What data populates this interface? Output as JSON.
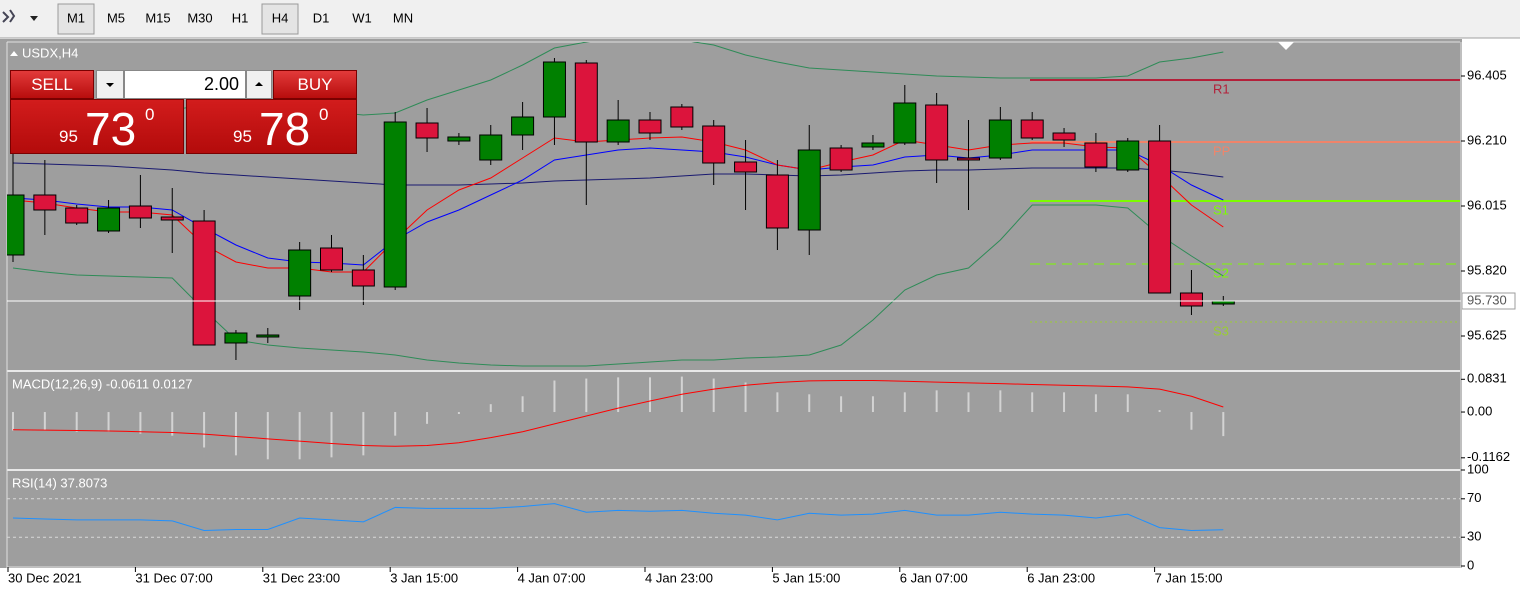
{
  "toolbar": {
    "timeframes": [
      {
        "label": "M1",
        "pressed": true
      },
      {
        "label": "M5",
        "pressed": false
      },
      {
        "label": "M15",
        "pressed": false
      },
      {
        "label": "M30",
        "pressed": false
      },
      {
        "label": "H1",
        "pressed": false
      },
      {
        "label": "H4",
        "pressed": true
      },
      {
        "label": "D1",
        "pressed": false
      },
      {
        "label": "W1",
        "pressed": false
      },
      {
        "label": "MN",
        "pressed": false
      }
    ]
  },
  "trade": {
    "sell_label": "SELL",
    "buy_label": "BUY",
    "lots": "2.00",
    "sell_price": [
      "95",
      "73",
      "0"
    ],
    "buy_price": [
      "95",
      "78",
      "0"
    ]
  },
  "chart_data": [
    {
      "type": "candlestick",
      "title": "USDX,H4",
      "categories": [
        "30 Dec 2021",
        null,
        null,
        null,
        "31 Dec 07:00",
        null,
        null,
        null,
        "31 Dec 23:00",
        null,
        null,
        null,
        "3 Jan 15:00",
        null,
        null,
        null,
        "4 Jan 07:00",
        null,
        null,
        null,
        "4 Jan 23:00",
        null,
        null,
        null,
        "5 Jan 15:00",
        null,
        null,
        null,
        "6 Jan 07:00",
        null,
        null,
        null,
        "6 Jan 23:00",
        null,
        null,
        null,
        "7 Jan 15:00",
        null,
        null
      ],
      "open": [
        95.868,
        96.048,
        96.009,
        95.94,
        96.015,
        95.982,
        95.97,
        95.604,
        95.622,
        95.745,
        95.889,
        95.823,
        95.772,
        96.264,
        96.21,
        96.153,
        96.228,
        96.282,
        96.444,
        96.207,
        96.273,
        96.312,
        96.255,
        96.147,
        96.108,
        95.943,
        96.189,
        96.192,
        96.204,
        96.318,
        96.159,
        96.159,
        96.273,
        96.234,
        96.204,
        96.123,
        96.21,
        95.754,
        95.721
      ],
      "high": [
        96.183,
        96.153,
        96.018,
        96.033,
        96.108,
        96.069,
        96.003,
        95.643,
        95.649,
        95.907,
        95.928,
        95.868,
        96.297,
        96.309,
        96.234,
        96.258,
        96.327,
        96.459,
        96.453,
        96.333,
        96.297,
        96.321,
        96.273,
        96.213,
        96.153,
        96.258,
        96.198,
        96.228,
        96.378,
        96.354,
        96.273,
        96.312,
        96.297,
        96.249,
        96.234,
        96.219,
        96.258,
        95.823,
        95.745
      ],
      "low": [
        95.847,
        95.928,
        95.958,
        95.934,
        95.949,
        95.874,
        95.598,
        95.553,
        95.604,
        95.703,
        95.817,
        95.718,
        95.763,
        96.177,
        96.198,
        96.138,
        96.183,
        96.198,
        96.018,
        96.198,
        96.213,
        96.243,
        96.078,
        96.003,
        95.883,
        95.868,
        96.117,
        96.183,
        96.198,
        96.084,
        96.003,
        96.153,
        96.213,
        96.192,
        96.117,
        96.117,
        95.754,
        95.688,
        95.715
      ],
      "close": [
        96.048,
        96.003,
        95.964,
        96.009,
        95.979,
        95.973,
        95.598,
        95.634,
        95.628,
        95.883,
        95.823,
        95.775,
        96.267,
        96.219,
        96.222,
        96.228,
        96.282,
        96.447,
        96.207,
        96.273,
        96.234,
        96.252,
        96.144,
        96.117,
        95.949,
        96.183,
        96.123,
        96.204,
        96.324,
        96.153,
        96.153,
        96.273,
        96.219,
        96.213,
        96.132,
        96.21,
        95.754,
        95.715,
        95.73
      ],
      "up_color": "#008000",
      "down_color": "#dc143c",
      "series": [
        {
          "color": "#2e8b57",
          "values": [
            96.303,
            96.303,
            96.297,
            96.297,
            96.297,
            96.303,
            96.318,
            96.318,
            96.309,
            96.303,
            96.297,
            96.288,
            96.294,
            96.333,
            96.363,
            96.393,
            96.438,
            96.489,
            96.507,
            96.519,
            96.519,
            96.513,
            96.498,
            96.468,
            96.447,
            96.429,
            96.423,
            96.417,
            96.411,
            96.405,
            96.402,
            96.399,
            96.399,
            96.399,
            96.399,
            96.405,
            96.447,
            96.459,
            96.477
          ]
        },
        {
          "color": "#2e8b57",
          "values": [
            95.829,
            95.817,
            95.808,
            95.805,
            95.802,
            95.799,
            95.703,
            95.613,
            95.598,
            95.589,
            95.583,
            95.577,
            95.568,
            95.553,
            95.544,
            95.538,
            95.535,
            95.535,
            95.535,
            95.541,
            95.547,
            95.553,
            95.553,
            95.559,
            95.562,
            95.568,
            95.598,
            95.673,
            95.763,
            95.808,
            95.829,
            95.913,
            96.018,
            96.018,
            96.018,
            96.009,
            95.928,
            95.865,
            95.805
          ]
        },
        {
          "color": "#191970",
          "values": [
            96.144,
            96.141,
            96.138,
            96.135,
            96.129,
            96.123,
            96.114,
            96.108,
            96.102,
            96.096,
            96.09,
            96.084,
            96.078,
            96.078,
            96.078,
            96.081,
            96.084,
            96.09,
            96.093,
            96.096,
            96.099,
            96.105,
            96.111,
            96.111,
            96.108,
            96.105,
            96.108,
            96.114,
            96.12,
            96.123,
            96.123,
            96.126,
            96.129,
            96.129,
            96.129,
            96.129,
            96.123,
            96.114,
            96.102
          ]
        },
        {
          "color": "#0000ff",
          "values": [
            96.039,
            96.033,
            96.021,
            96.012,
            96.012,
            96.003,
            95.949,
            95.898,
            95.859,
            95.847,
            95.844,
            95.838,
            95.913,
            95.967,
            96.003,
            96.048,
            96.093,
            96.153,
            96.168,
            96.183,
            96.189,
            96.183,
            96.177,
            96.162,
            96.138,
            96.123,
            96.132,
            96.138,
            96.162,
            96.168,
            96.159,
            96.168,
            96.183,
            96.183,
            96.183,
            96.183,
            96.138,
            96.078,
            96.033
          ]
        },
        {
          "color": "#ff0000",
          "values": [
            96.033,
            96.024,
            96.009,
            95.997,
            95.997,
            95.988,
            95.898,
            95.847,
            95.829,
            95.829,
            95.817,
            95.817,
            95.913,
            96.003,
            96.063,
            96.099,
            96.159,
            96.219,
            96.207,
            96.213,
            96.219,
            96.222,
            96.207,
            96.183,
            96.138,
            96.123,
            96.147,
            96.168,
            96.213,
            96.198,
            96.183,
            96.198,
            96.204,
            96.204,
            96.192,
            96.189,
            96.108,
            96.018,
            95.952
          ]
        }
      ],
      "levels": [
        {
          "name": "R1",
          "value": 96.393,
          "color": "#b4203a",
          "dash": "solid"
        },
        {
          "name": "PP",
          "value": 96.207,
          "color": "#f0846a",
          "dash": "solid"
        },
        {
          "name": "S1",
          "value": 96.03,
          "color": "#7cfc00",
          "dash": "solid"
        },
        {
          "name": "S2",
          "value": 95.841,
          "color": "#7cfc00",
          "dash": "dashed"
        },
        {
          "name": "S3",
          "value": 95.667,
          "color": "#9acd32",
          "dash": "dotted"
        }
      ],
      "current_price": {
        "value": 95.73,
        "label": "95.730"
      },
      "ylim": [
        95.523,
        96.507
      ],
      "yticks": [
        96.405,
        {
          "value": 96.21,
          "label": "96.210"
        },
        96.015,
        {
          "value": 95.82,
          "label": "95.820"
        },
        95.625
      ]
    },
    {
      "type": "macd",
      "title": "MACD(12,26,9) -0.0611 0.0127",
      "values": [
        -0.047,
        -0.047,
        -0.05,
        -0.05,
        -0.055,
        -0.06,
        -0.09,
        -0.11,
        -0.12,
        -0.12,
        -0.115,
        -0.11,
        -0.06,
        -0.03,
        -0.005,
        0.02,
        0.04,
        0.08,
        0.085,
        0.088,
        0.088,
        0.09,
        0.085,
        0.075,
        0.05,
        0.045,
        0.04,
        0.04,
        0.05,
        0.055,
        0.05,
        0.055,
        0.05,
        0.05,
        0.045,
        0.045,
        0.005,
        -0.045,
        -0.0611
      ],
      "color": "#d3d3d3",
      "series": [
        {
          "color": "#ff0000",
          "values": [
            -0.045,
            -0.046,
            -0.047,
            -0.048,
            -0.05,
            -0.052,
            -0.056,
            -0.062,
            -0.068,
            -0.074,
            -0.08,
            -0.085,
            -0.087,
            -0.085,
            -0.078,
            -0.065,
            -0.05,
            -0.03,
            -0.01,
            0.01,
            0.028,
            0.045,
            0.058,
            0.068,
            0.075,
            0.079,
            0.08,
            0.08,
            0.078,
            0.076,
            0.074,
            0.072,
            0.07,
            0.068,
            0.066,
            0.064,
            0.058,
            0.04,
            0.0127
          ]
        }
      ],
      "ylim": [
        -0.137,
        0.094
      ],
      "yticks": [
        0.0831,
        {
          "value": 0,
          "label": "0.00"
        },
        -0.1162
      ]
    },
    {
      "type": "line",
      "title": "RSI(14) 37.8073",
      "series": [
        {
          "color": "#1e90ff",
          "values": [
            50,
            49,
            48,
            48,
            48,
            47,
            37,
            38,
            38,
            50,
            48,
            46,
            61,
            60,
            60,
            60,
            62,
            65,
            56,
            58,
            57,
            58,
            55,
            53,
            48,
            55,
            53,
            54,
            58,
            53,
            53,
            56,
            54,
            53,
            50,
            54,
            40,
            37,
            37.8073
          ]
        }
      ],
      "levels": [
        70,
        30
      ],
      "ylim": [
        0,
        100
      ],
      "yticks": [
        100,
        70,
        30,
        0
      ]
    }
  ]
}
